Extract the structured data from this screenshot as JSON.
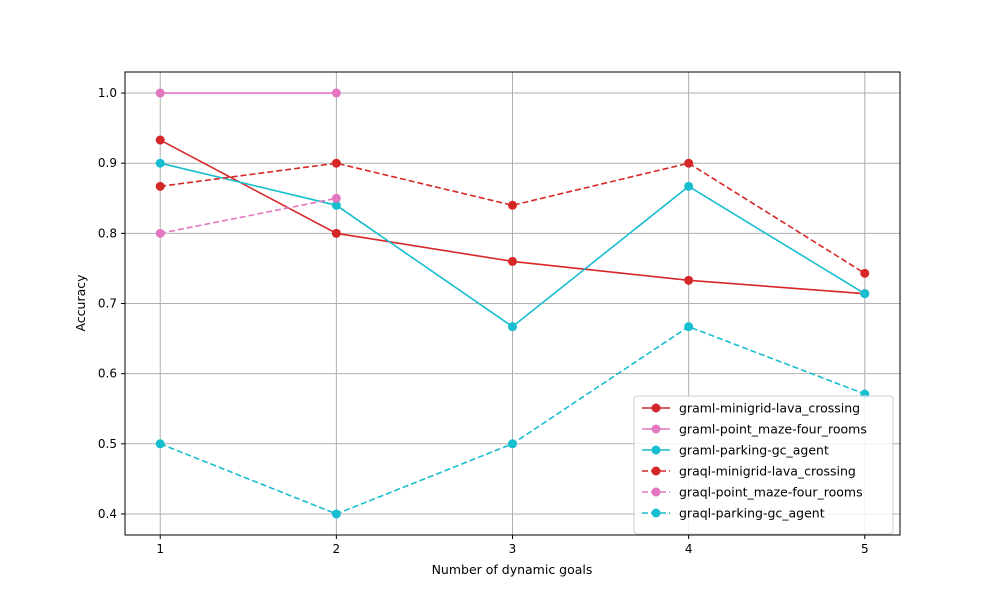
{
  "chart_data": {
    "type": "line",
    "xlabel": "Number of dynamic goals",
    "ylabel": "Accuracy",
    "x": [
      1,
      2,
      3,
      4,
      5
    ],
    "xlim": [
      0.8,
      5.2
    ],
    "ylim": [
      0.37,
      1.03
    ],
    "xticks": [
      1,
      2,
      3,
      4,
      5
    ],
    "yticks": [
      0.4,
      0.5,
      0.6,
      0.7,
      0.8,
      0.9,
      1.0
    ],
    "ytick_labels": [
      "0.4",
      "0.5",
      "0.6",
      "0.7",
      "0.8",
      "0.9",
      "1.0"
    ],
    "grid": true,
    "legend_position": "lower-right",
    "series": [
      {
        "name": "graml-minigrid-lava_crossing",
        "color": "#d62728",
        "dashed": false,
        "x": [
          1,
          2,
          3,
          4,
          5
        ],
        "values": [
          0.933,
          0.8,
          0.76,
          0.733,
          0.714
        ]
      },
      {
        "name": "graml-point_maze-four_rooms",
        "color": "#e377c2",
        "dashed": false,
        "x": [
          1,
          2
        ],
        "values": [
          1.0,
          1.0
        ]
      },
      {
        "name": "graml-parking-gc_agent",
        "color": "#17becf",
        "dashed": false,
        "x": [
          1,
          2,
          3,
          4,
          5
        ],
        "values": [
          0.9,
          0.84,
          0.667,
          0.867,
          0.714
        ]
      },
      {
        "name": "graql-minigrid-lava_crossing",
        "color": "#d62728",
        "dashed": true,
        "x": [
          1,
          2,
          3,
          4,
          5
        ],
        "values": [
          0.867,
          0.9,
          0.84,
          0.9,
          0.743
        ]
      },
      {
        "name": "graql-point_maze-four_rooms",
        "color": "#e377c2",
        "dashed": true,
        "x": [
          1,
          2
        ],
        "values": [
          0.8,
          0.85
        ]
      },
      {
        "name": "graql-parking-gc_agent",
        "color": "#17becf",
        "dashed": true,
        "x": [
          1,
          2,
          3,
          4,
          5
        ],
        "values": [
          0.5,
          0.4,
          0.5,
          0.667,
          0.571
        ]
      }
    ]
  }
}
